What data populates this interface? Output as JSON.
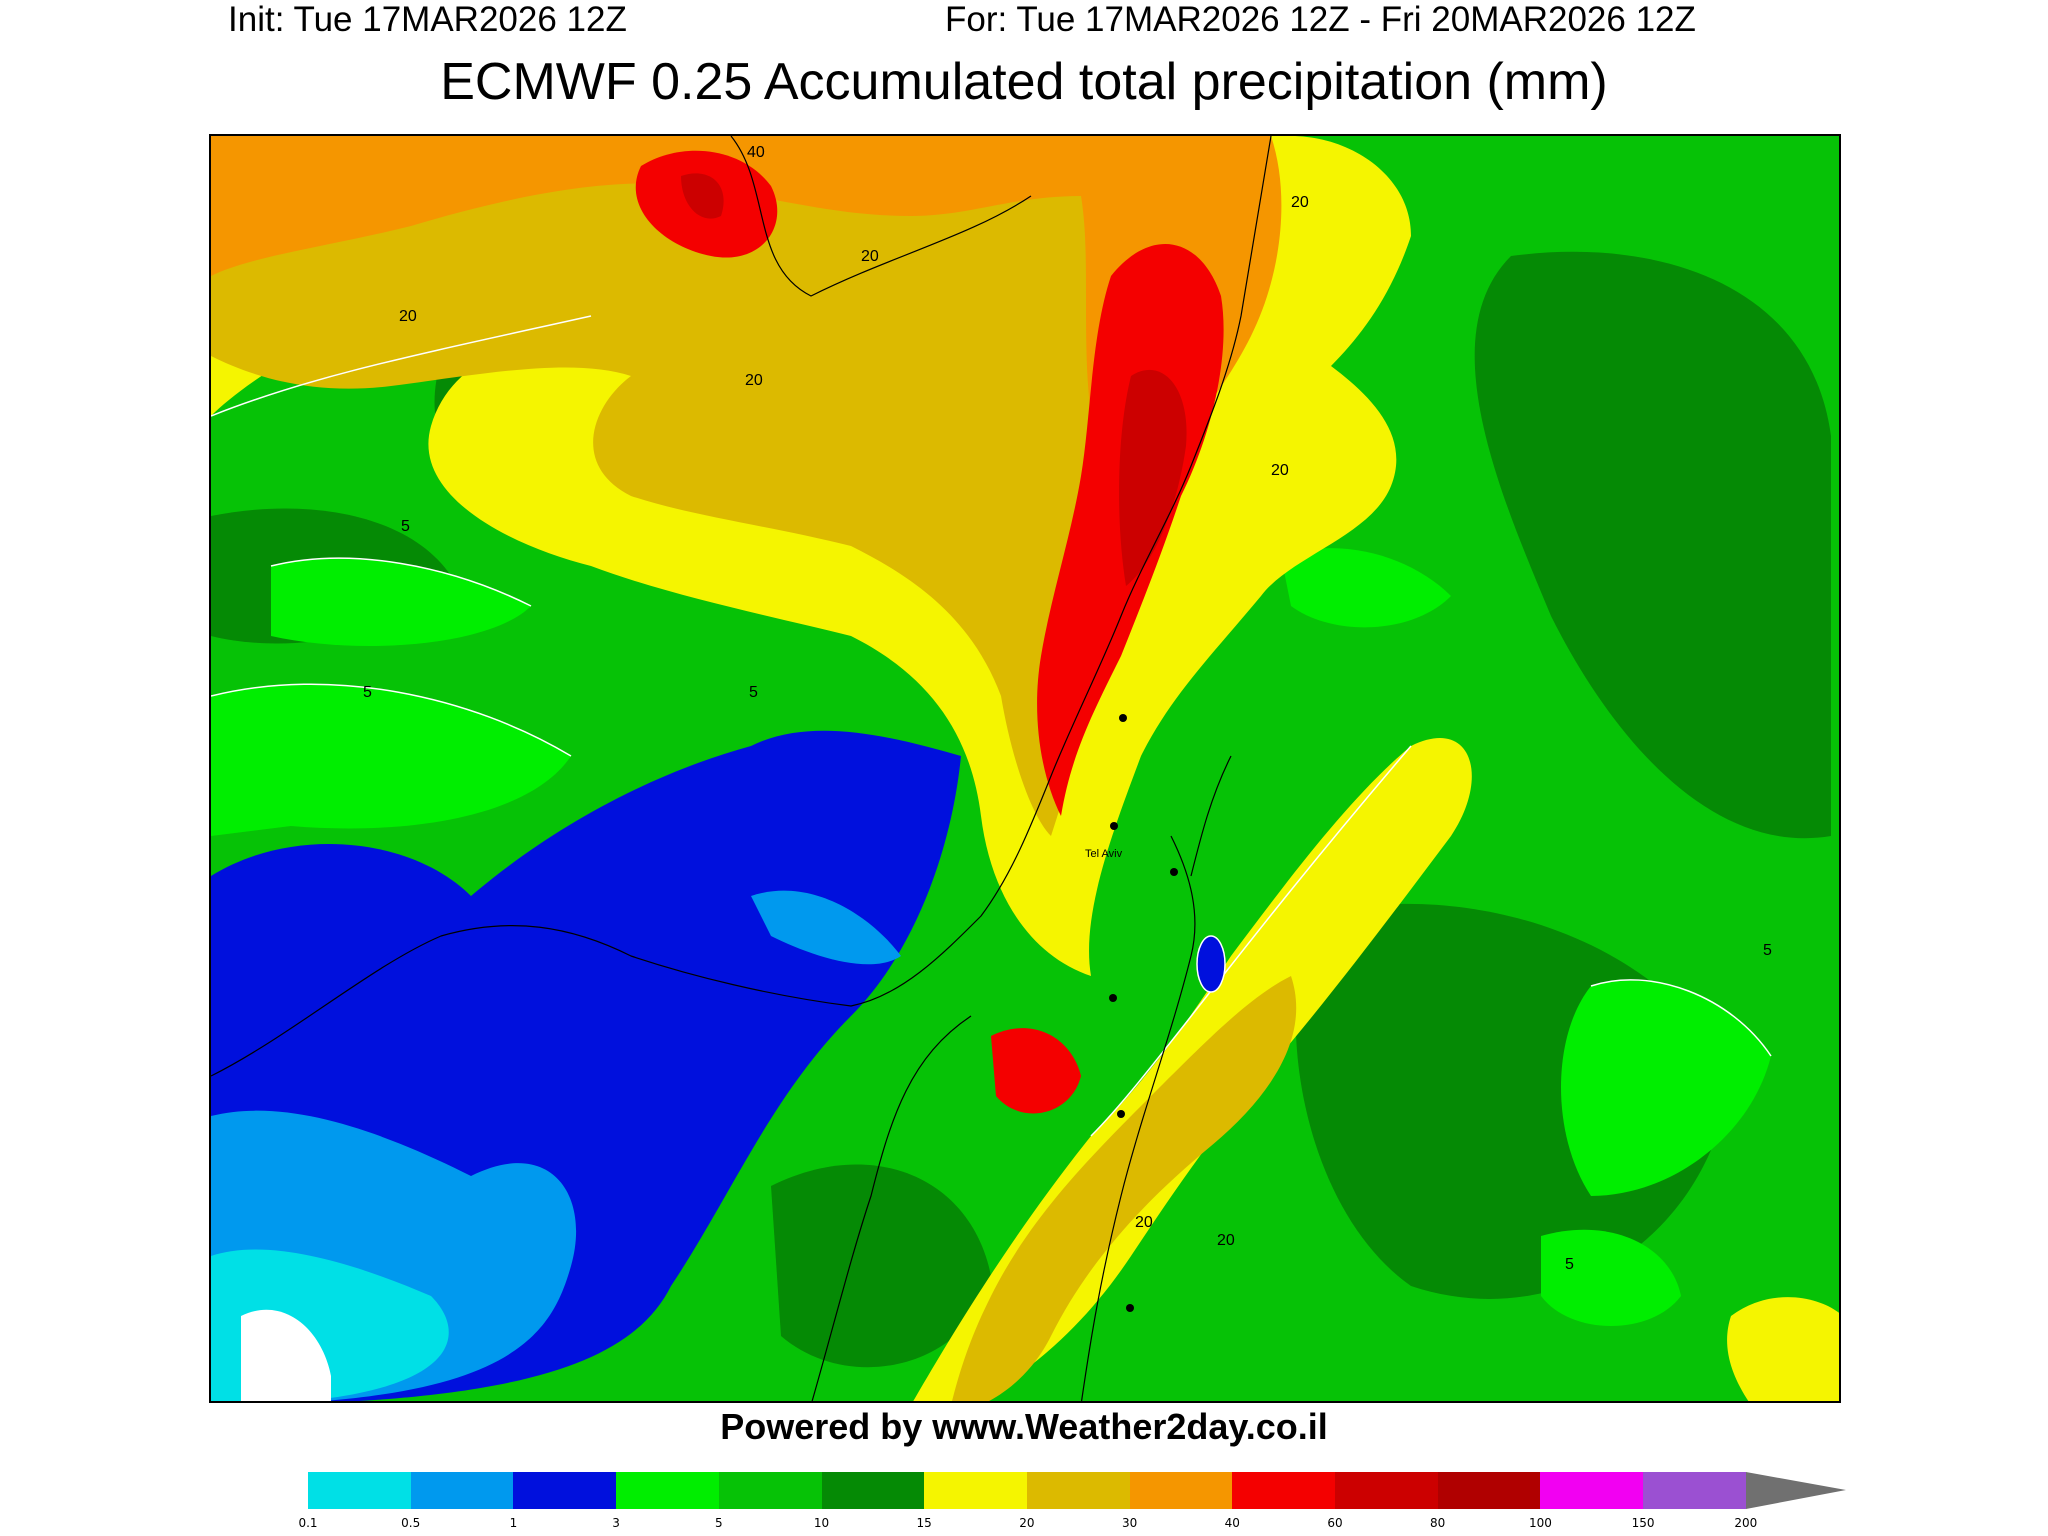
{
  "header": {
    "init": "Init: Tue 17MAR2026 12Z",
    "valid": "For: Tue 17MAR2026 12Z - Fri 20MAR2026 12Z",
    "title": "ECMWF 0.25 Accumulated total precipitation (mm)"
  },
  "map": {
    "city_label": "Tel Aviv",
    "contour_labels": [
      "40",
      "20",
      "20",
      "20",
      "20",
      "5",
      "5",
      "5",
      "20",
      "20",
      "20",
      "5",
      "5"
    ]
  },
  "footer": {
    "credit": "Powered by www.Weather2day.co.il"
  },
  "colorbar": {
    "ticks": [
      "0.1",
      "0.5",
      "1",
      "3",
      "5",
      "10",
      "15",
      "20",
      "30",
      "40",
      "60",
      "80",
      "100",
      "150",
      "200"
    ],
    "colors": [
      "#00e0e6",
      "#0099ee",
      "#0010dd",
      "#00ee00",
      "#06c206",
      "#058a05",
      "#f5f500",
      "#dcba00",
      "#f59600",
      "#f40000",
      "#cc0000",
      "#b00000",
      "#f200f2",
      "#9b50d2"
    ],
    "overflow_color": "#707070"
  }
}
